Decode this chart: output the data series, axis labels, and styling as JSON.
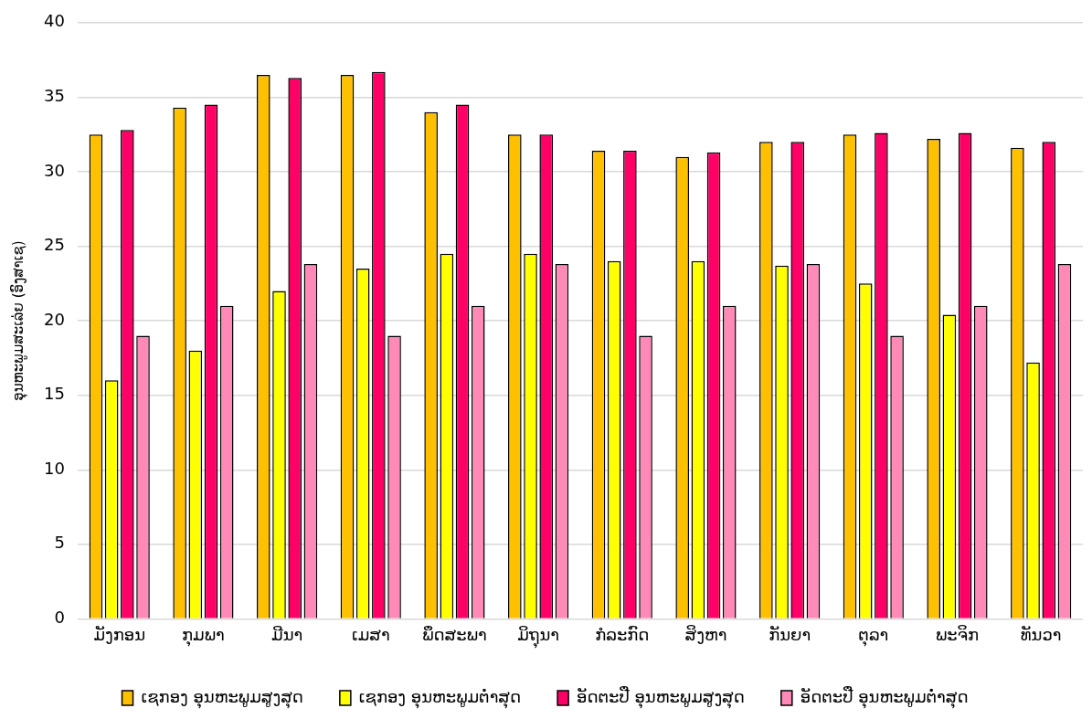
{
  "chart_data": {
    "type": "bar",
    "ylabel": "ອຸນຫະພູມສະເລ່ຍ (ອົງສາເຊ)",
    "categories": [
      "ມັງກອນ",
      "ກຸມພາ",
      "ມີນາ",
      "ເມສາ",
      "ພຶດສະພາ",
      "ມິຖຸນາ",
      "ກໍລະກົດ",
      "ສິງຫາ",
      "ກັນຍາ",
      "ຕຸລາ",
      "ພະຈິກ",
      "ທັນວາ"
    ],
    "series": [
      {
        "name": "ເຊກອງ ອຸນຫະພູມສູງສຸດ",
        "color": "#ffc000",
        "values": [
          32.5,
          34.3,
          36.5,
          36.5,
          34.0,
          32.5,
          31.4,
          31.0,
          32.0,
          32.5,
          32.2,
          31.6
        ]
      },
      {
        "name": "ເຊກອງ ອຸນຫະພູມຕ່ຳສຸດ",
        "color": "#ffff00",
        "values": [
          16,
          18,
          22,
          23.5,
          24.5,
          24.5,
          24.0,
          24.0,
          23.7,
          22.5,
          20.4,
          17.2
        ]
      },
      {
        "name": "ອັດຕະປື ອຸນຫະພູມສູງສຸດ",
        "color": "#ff0066",
        "values": [
          32.8,
          34.5,
          36.3,
          36.7,
          34.5,
          32.5,
          31.4,
          31.3,
          32.0,
          32.6,
          32.6,
          32.0
        ]
      },
      {
        "name": "ອັດຕະປື ອຸນຫະພູມຕ່ຳສຸດ",
        "color": "#ff8ab8",
        "values": [
          19,
          21,
          23.8,
          19,
          21,
          23.8,
          19,
          21,
          23.8,
          19,
          21,
          23.8
        ]
      }
    ],
    "ylim": [
      0,
      40
    ],
    "yticks": [
      0,
      5,
      10,
      15,
      20,
      25,
      30,
      35,
      40
    ],
    "grid": "y",
    "legend": "bottom"
  }
}
